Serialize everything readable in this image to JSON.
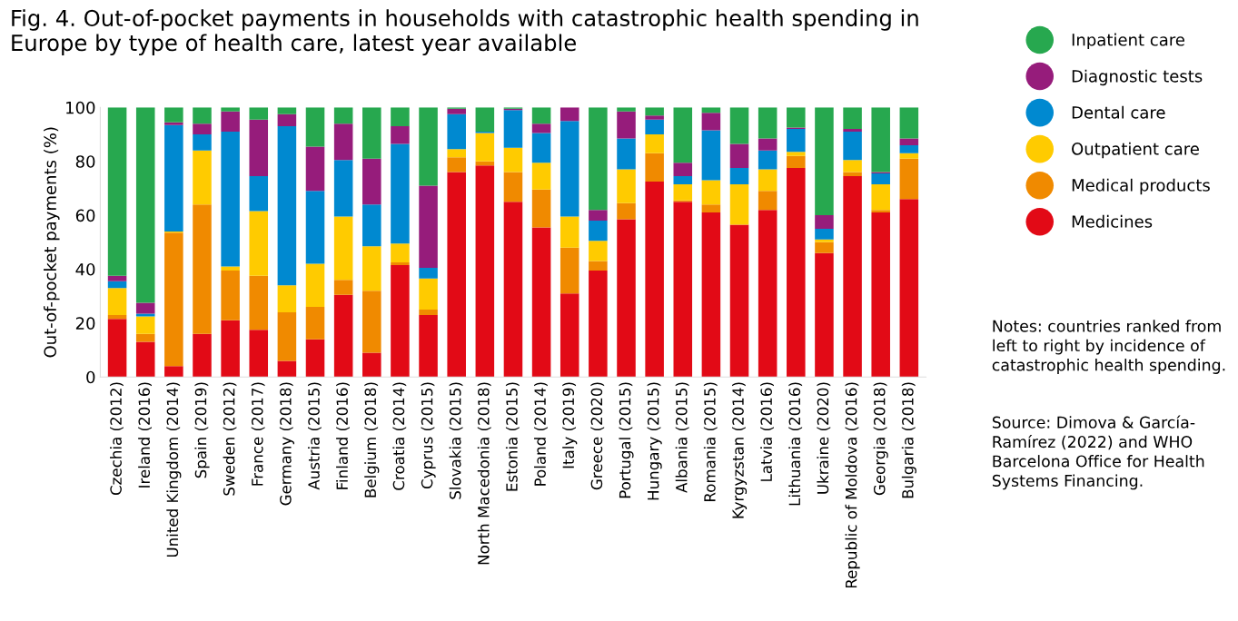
{
  "chart_data": {
    "type": "bar",
    "stacked": true,
    "title": "Fig. 4. Out-of-pocket payments in households with catastrophic health spending in\nEurope by type of health care, latest year available",
    "ylabel": "Out-of-pocket payments (%)",
    "categories": [
      "Czechia (2012)",
      "Ireland (2016)",
      "United Kingdom (2014)",
      "Spain (2019)",
      "Sweden (2012)",
      "France (2017)",
      "Germany (2018)",
      "Austria (2015)",
      "Finland (2016)",
      "Belgium (2018)",
      "Croatia (2014)",
      "Cyprus (2015)",
      "Slovakia (2015)",
      "North Macedonia (2018)",
      "Estonia (2015)",
      "Poland (2014)",
      "Italy (2019)",
      "Greece (2020)",
      "Portugal (2015)",
      "Hungary (2015)",
      "Albania (2015)",
      "Romania (2015)",
      "Kyrgyzstan (2014)",
      "Latvia (2016)",
      "Lithuania (2016)",
      "Ukraine (2020)",
      "Republic of Moldova (2016)",
      "Georgia (2018)",
      "Bulgaria (2018)"
    ],
    "series": [
      {
        "name": "Medicines",
        "color": "#e20a16",
        "values": [
          21.5,
          13,
          4,
          16,
          21,
          17.5,
          6,
          14,
          30.5,
          9,
          41.5,
          23,
          76,
          78.5,
          65,
          55.5,
          31,
          39.5,
          58.5,
          72.5,
          65,
          61,
          56.5,
          62,
          77.5,
          46,
          74.5,
          61,
          66
        ]
      },
      {
        "name": "Medical products",
        "color": "#f08a00",
        "values": [
          1.5,
          3,
          49.5,
          48,
          18.5,
          20,
          18,
          12,
          5.5,
          23,
          1,
          2,
          5.5,
          1.5,
          11,
          14,
          17,
          3.5,
          6,
          10.5,
          0.5,
          3,
          0,
          7,
          4.5,
          4,
          1.5,
          1,
          15
        ]
      },
      {
        "name": "Outpatient care",
        "color": "#ffcb00",
        "values": [
          10,
          6.5,
          0.5,
          20,
          1.5,
          24,
          10,
          16,
          23.5,
          16.5,
          7,
          11.5,
          3,
          10.5,
          9,
          10,
          11.5,
          7.5,
          12.5,
          7,
          6,
          9,
          15,
          8,
          1.5,
          1,
          4.5,
          9.5,
          2
        ]
      },
      {
        "name": "Dental care",
        "color": "#0089d0",
        "values": [
          2.5,
          1,
          39.5,
          6,
          50,
          13,
          59,
          27,
          21,
          15.5,
          37,
          4,
          13,
          0.5,
          14,
          11,
          35.5,
          7.5,
          11.5,
          5.5,
          3,
          18.5,
          6,
          7,
          8.5,
          4,
          10.5,
          4,
          3
        ]
      },
      {
        "name": "Diagnostic tests",
        "color": "#961c7b",
        "values": [
          2,
          4,
          1,
          4,
          7.5,
          21,
          4.5,
          16.5,
          13.5,
          17,
          6.5,
          30.5,
          2,
          0,
          0.5,
          3.5,
          5,
          4,
          10,
          1.5,
          5,
          6.5,
          9,
          4.5,
          0.5,
          5,
          1,
          0.5,
          2.5
        ]
      },
      {
        "name": "Inpatient care",
        "color": "#27a84f",
        "values": [
          62.5,
          72.5,
          5.5,
          6,
          1.5,
          4.5,
          2.5,
          14.5,
          6,
          19,
          7,
          29,
          0.5,
          9,
          0.5,
          6,
          0,
          38,
          1.5,
          3,
          20.5,
          2,
          13.5,
          11.5,
          7.5,
          40,
          8,
          24,
          11.5
        ]
      }
    ],
    "ylim": [
      0,
      100
    ],
    "yticks": [
      0,
      20,
      40,
      60,
      80,
      100
    ],
    "grid": false,
    "legend": "top right",
    "annotations": [
      "Notes: countries ranked from\nleft to right by incidence of\ncatastrophic health spending.",
      "Source: Dimova & García-\nRamírez (2022) and WHO\nBarcelona Office for Health\nSystems Financing."
    ]
  }
}
